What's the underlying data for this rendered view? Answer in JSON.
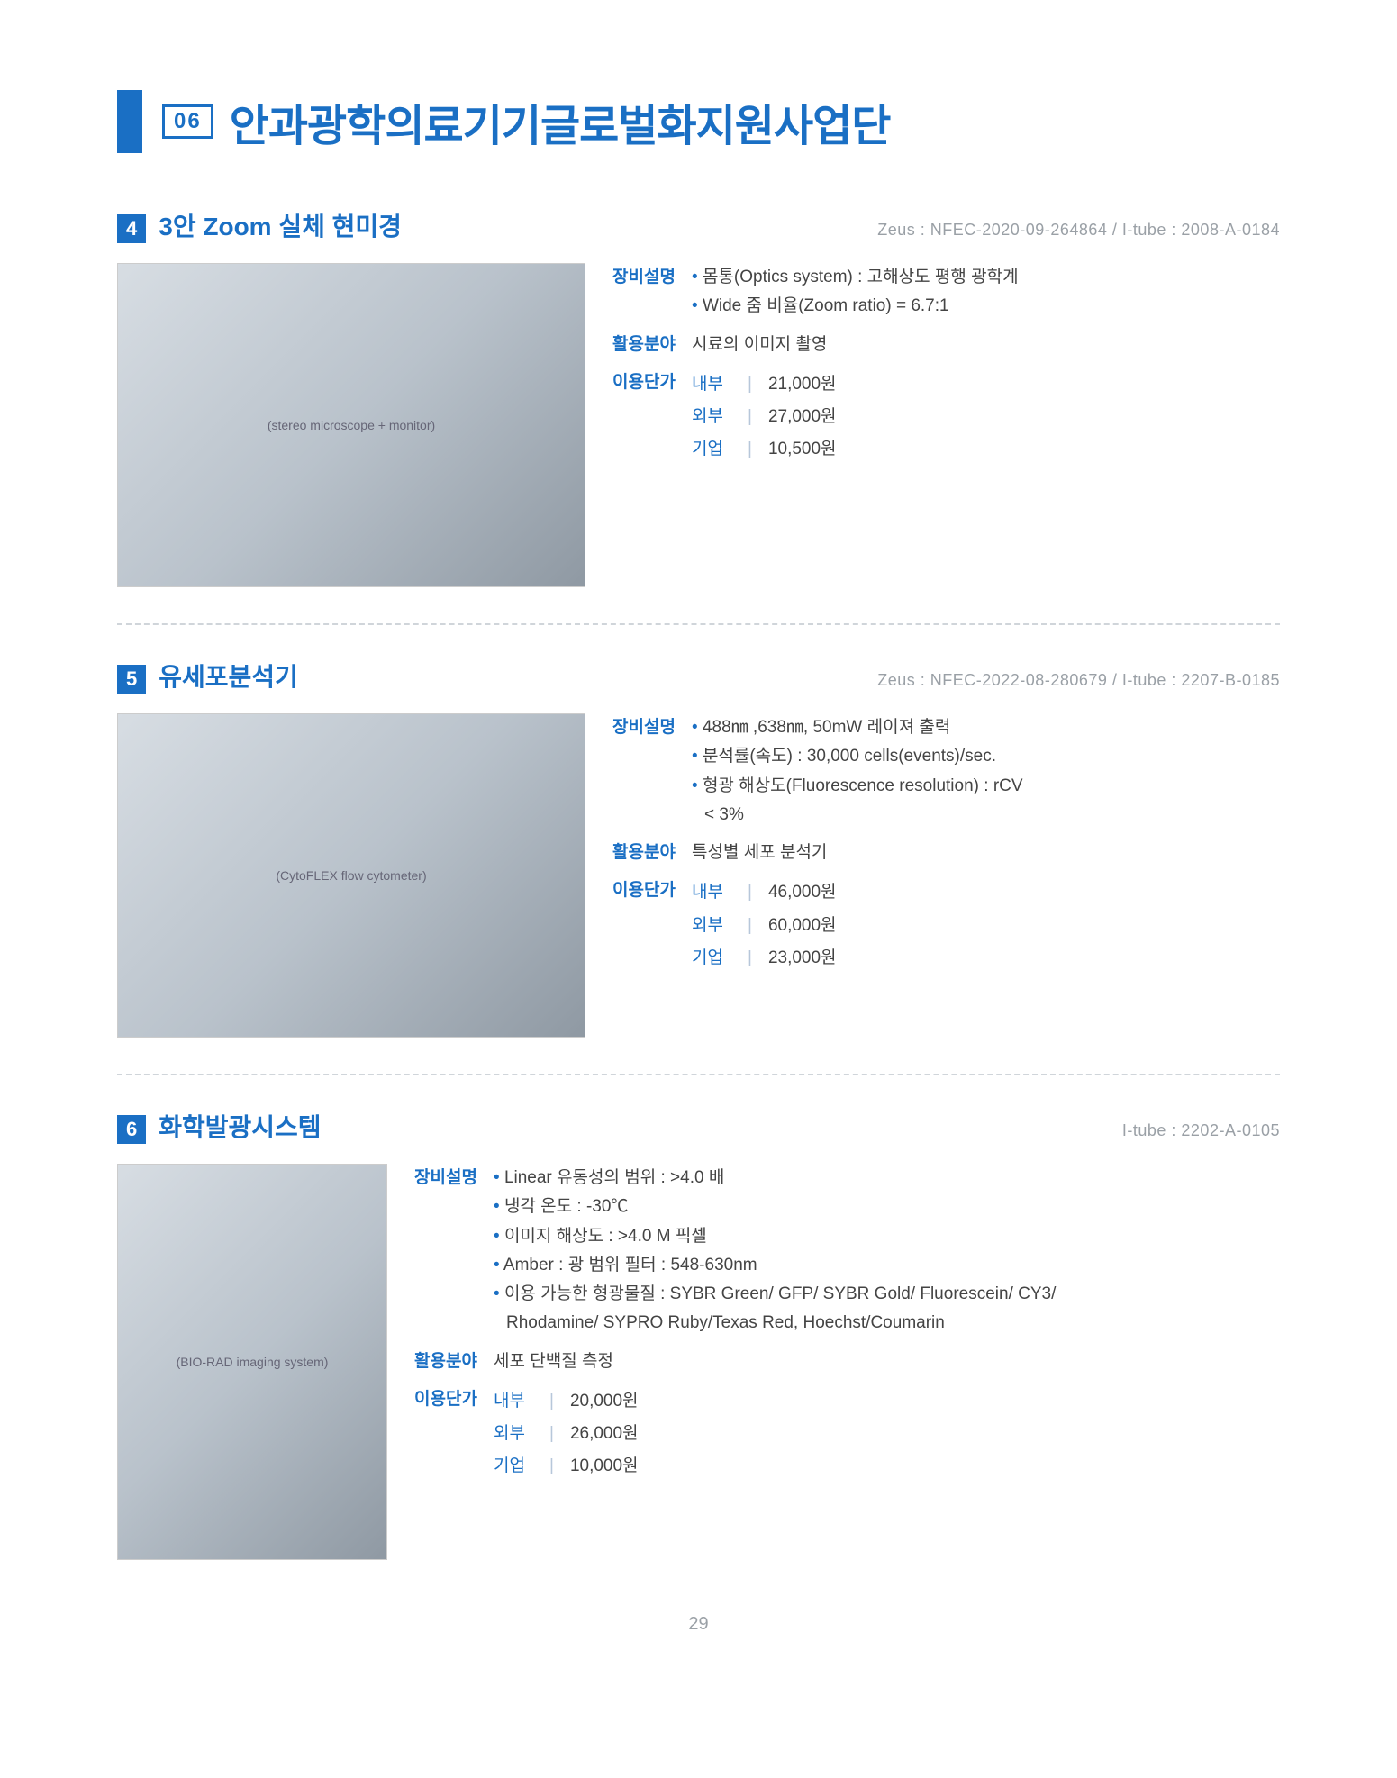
{
  "header": {
    "section_number": "06",
    "title": "안과광학의료기기글로벌화지원사업단"
  },
  "items": [
    {
      "num": "4",
      "title": "3안 Zoom 실체 현미경",
      "codes": "Zeus : NFEC-2020-09-264864 / I-tube : 2008-A-0184",
      "layout": "wide",
      "photo_label": "(stereo microscope + monitor)",
      "spec_lines": [
        "몸통(Optics system) : 고해상도 평행 광학계",
        "Wide 줌 비율(Zoom ratio) = 6.7:1"
      ],
      "usage": "시료의 이미지 촬영",
      "prices": [
        {
          "tier": "내부",
          "value": "21,000원"
        },
        {
          "tier": "외부",
          "value": "27,000원"
        },
        {
          "tier": "기업",
          "value": "10,500원"
        }
      ]
    },
    {
      "num": "5",
      "title": "유세포분석기",
      "codes": "Zeus : NFEC-2022-08-280679 / I-tube : 2207-B-0185",
      "layout": "wide",
      "photo_label": "(CytoFLEX flow cytometer)",
      "spec_lines": [
        "488㎚ ,638㎚, 50mW 레이져 출력",
        "분석률(속도) : 30,000 cells(events)/sec.",
        "형광 해상도(Fluorescence resolution) : rCV",
        "< 3%"
      ],
      "usage": "특성별 세포 분석기",
      "prices": [
        {
          "tier": "내부",
          "value": "46,000원"
        },
        {
          "tier": "외부",
          "value": "60,000원"
        },
        {
          "tier": "기업",
          "value": "23,000원"
        }
      ]
    },
    {
      "num": "6",
      "title": "화학발광시스템",
      "codes": "I-tube : 2202-A-0105",
      "layout": "narrow",
      "photo_label": "(BIO-RAD imaging system)",
      "spec_lines": [
        "Linear 유동성의 범위 : >4.0 배",
        "냉각 온도 : -30℃",
        "이미지 해상도 : >4.0 M 픽셀",
        "Amber : 광 범위 필터 : 548-630nm",
        "이용 가능한 형광물질 : SYBR Green/ GFP/ SYBR Gold/ Fluorescein/ CY3/",
        "Rhodamine/ SYPRO Ruby/Texas Red, Hoechst/Coumarin"
      ],
      "usage": "세포 단백질 측정",
      "prices": [
        {
          "tier": "내부",
          "value": "20,000원"
        },
        {
          "tier": "외부",
          "value": "26,000원"
        },
        {
          "tier": "기업",
          "value": "10,000원"
        }
      ]
    }
  ],
  "labels": {
    "spec": "장비설명",
    "usage": "활용분야",
    "price": "이용단가"
  },
  "page_number": "29",
  "colors": {
    "accent": "#1a6fc4",
    "muted": "#9aa0a6",
    "text": "#444444"
  }
}
